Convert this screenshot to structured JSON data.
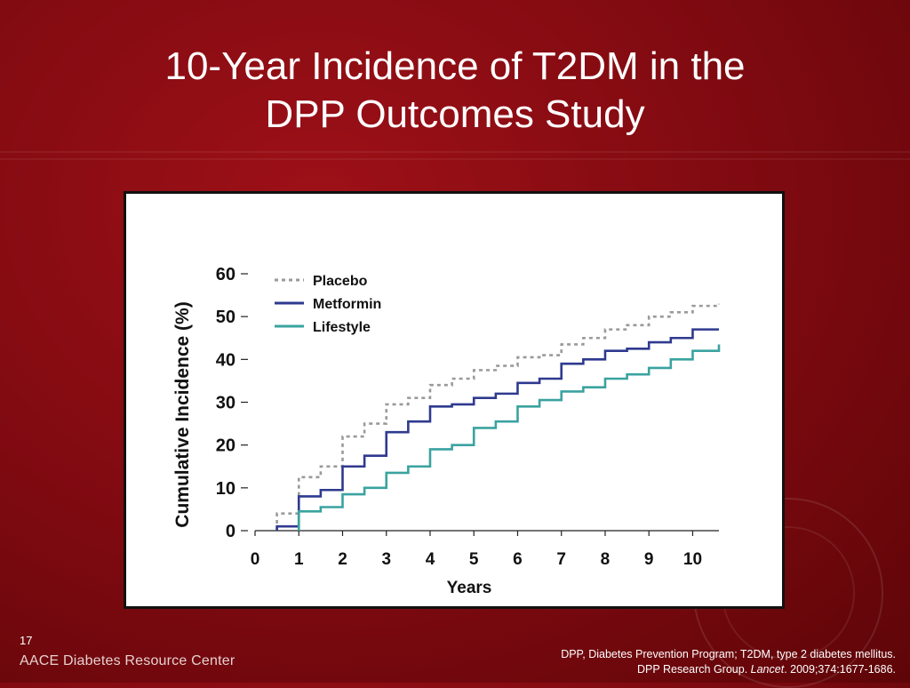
{
  "slide": {
    "title_line1": "10-Year Incidence of T2DM in the",
    "title_line2": "DPP Outcomes Study",
    "slide_number": "17",
    "brand": "AACE Diabetes Resource Center",
    "footnote_line1": "DPP, Diabetes Prevention Program; T2DM, type 2 diabetes mellitus.",
    "footnote_group": "DPP Research Group.",
    "footnote_journal": "Lancet",
    "footnote_citation": ". 2009;374:1677-1686."
  },
  "colors": {
    "background": "#8a0c13",
    "placebo": "#9a9a9a",
    "metformin": "#2f3a8f",
    "lifestyle": "#3aa3a0"
  },
  "chart_data": {
    "type": "line",
    "step": true,
    "xlabel": "Years",
    "ylabel": "Cumulative Incidence (%)",
    "xlim": [
      0,
      10.6
    ],
    "ylim": [
      0,
      60
    ],
    "xticks": [
      0,
      1,
      2,
      3,
      4,
      5,
      6,
      7,
      8,
      9,
      10
    ],
    "yticks": [
      0,
      10,
      20,
      30,
      40,
      50,
      60
    ],
    "grid": false,
    "legend_position": "top-left",
    "series": [
      {
        "name": "Placebo",
        "style": "dotted",
        "color": "#9a9a9a",
        "x": [
          0.5,
          1.0,
          1.5,
          2.0,
          2.5,
          3.0,
          3.5,
          4.0,
          4.5,
          5.0,
          5.5,
          6.0,
          6.5,
          7.0,
          7.5,
          8.0,
          8.5,
          9.0,
          9.5,
          10.0,
          10.6
        ],
        "y": [
          4,
          12.5,
          15,
          22,
          25,
          29.5,
          31,
          34,
          35.5,
          37.5,
          38.5,
          40.5,
          41,
          43.5,
          45,
          47,
          48,
          50,
          51,
          52.5,
          53
        ]
      },
      {
        "name": "Metformin",
        "style": "solid",
        "color": "#2f3a8f",
        "x": [
          0.5,
          1.0,
          1.5,
          2.0,
          2.5,
          3.0,
          3.5,
          4.0,
          4.5,
          5.0,
          5.5,
          6.0,
          6.5,
          7.0,
          7.5,
          8.0,
          8.5,
          9.0,
          9.5,
          10.0,
          10.6
        ],
        "y": [
          1,
          8,
          9.5,
          15,
          17.5,
          23,
          25.5,
          29,
          29.5,
          31,
          32,
          34.5,
          35.5,
          39,
          40,
          42,
          42.5,
          44,
          45,
          47,
          47
        ]
      },
      {
        "name": "Lifestyle",
        "style": "solid",
        "color": "#3aa3a0",
        "x": [
          1.0,
          1.5,
          2.0,
          2.5,
          3.0,
          3.5,
          4.0,
          4.5,
          5.0,
          5.5,
          6.0,
          6.5,
          7.0,
          7.5,
          8.0,
          8.5,
          9.0,
          9.5,
          10.0,
          10.6
        ],
        "y": [
          4.5,
          5.5,
          8.5,
          10,
          13.5,
          15,
          19,
          20,
          24,
          25.5,
          29,
          30.5,
          32.5,
          33.5,
          35.5,
          36.5,
          38,
          40,
          42,
          43.5
        ]
      }
    ]
  }
}
